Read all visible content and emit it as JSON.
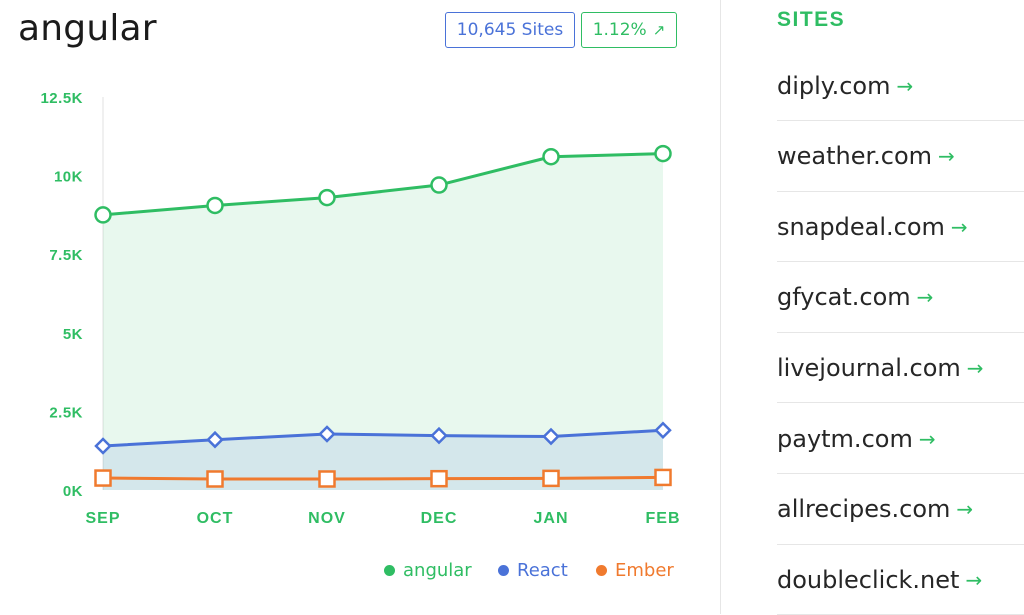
{
  "title": "angular",
  "badges": {
    "sites": "10,645 Sites",
    "percent": "1.12%",
    "percent_icon": "arrow-up-right-icon"
  },
  "colors": {
    "angular": "#2fbd63",
    "react": "#4a72d8",
    "ember": "#f07a2e",
    "axis_text": "#2fbd63"
  },
  "chart_data": {
    "type": "line",
    "categories": [
      "SEP",
      "OCT",
      "NOV",
      "DEC",
      "JAN",
      "FEB"
    ],
    "yticks": [
      "0K",
      "2.5K",
      "5K",
      "7.5K",
      "10K",
      "12.5K"
    ],
    "ylim": [
      0,
      12500
    ],
    "series": [
      {
        "name": "angular",
        "values": [
          8750,
          9050,
          9300,
          9700,
          10600,
          10700
        ],
        "marker": "circle",
        "fill": true
      },
      {
        "name": "React",
        "values": [
          1400,
          1600,
          1780,
          1730,
          1700,
          1900
        ],
        "marker": "diamond",
        "fill": true
      },
      {
        "name": "Ember",
        "values": [
          380,
          350,
          350,
          360,
          370,
          400
        ],
        "marker": "square",
        "fill": false
      }
    ],
    "legend": "bottom-right"
  },
  "sidebar": {
    "heading": "SITES",
    "arrow": "→",
    "sites": [
      "diply.com",
      "weather.com",
      "snapdeal.com",
      "gfycat.com",
      "livejournal.com",
      "paytm.com",
      "allrecipes.com",
      "doubleclick.net"
    ]
  }
}
